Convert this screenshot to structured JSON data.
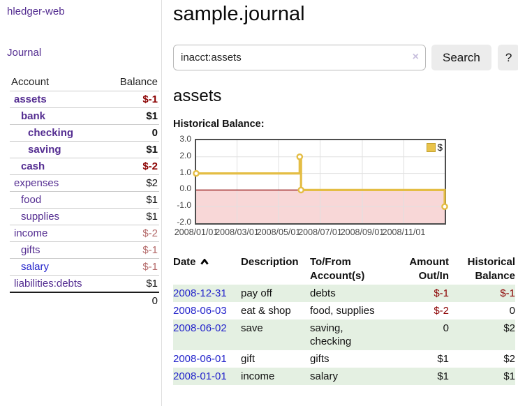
{
  "sidebar": {
    "brand": "hledger-web",
    "nav": [
      {
        "label": "Journal"
      }
    ],
    "accounts_table": {
      "col_account": "Account",
      "col_balance": "Balance",
      "rows": [
        {
          "name": "assets",
          "balance": "$-1",
          "indent": 0,
          "bold": true,
          "balance_style": "neg"
        },
        {
          "name": "bank",
          "balance": "$1",
          "indent": 1,
          "bold": true,
          "balance_style": ""
        },
        {
          "name": "checking",
          "balance": "0",
          "indent": 2,
          "bold": true,
          "balance_style": ""
        },
        {
          "name": "saving",
          "balance": "$1",
          "indent": 2,
          "bold": true,
          "balance_style": ""
        },
        {
          "name": "cash",
          "balance": "$-2",
          "indent": 1,
          "bold": true,
          "balance_style": "neg"
        },
        {
          "name": "expenses",
          "balance": "$2",
          "indent": 0,
          "bold": false,
          "balance_style": ""
        },
        {
          "name": "food",
          "balance": "$1",
          "indent": 1,
          "bold": false,
          "balance_style": ""
        },
        {
          "name": "supplies",
          "balance": "$1",
          "indent": 1,
          "bold": false,
          "balance_style": ""
        },
        {
          "name": "income",
          "balance": "$-2",
          "indent": 0,
          "bold": false,
          "balance_style": "soft-neg"
        },
        {
          "name": "gifts",
          "balance": "$-1",
          "indent": 1,
          "bold": false,
          "balance_style": "soft-neg"
        },
        {
          "name": "salary",
          "balance": "$-1",
          "indent": 1,
          "bold": false,
          "balance_style": "soft-neg",
          "link_color": "blue"
        },
        {
          "name": "liabilities:debts",
          "balance": "$1",
          "indent": 0,
          "bold": false,
          "balance_style": ""
        }
      ],
      "total": "0"
    }
  },
  "header": {
    "title": "sample.journal"
  },
  "search": {
    "value": "inacct:assets",
    "clear_icon": "×",
    "button_label": "Search",
    "help_label": "?"
  },
  "account_page": {
    "heading": "assets",
    "chart_title": "Historical Balance:"
  },
  "chart_data": {
    "type": "line",
    "step": true,
    "title": "Historical Balance:",
    "legend_position": "top-right",
    "legend_label": "$",
    "series": [
      {
        "name": "$",
        "color": "#e4bd44",
        "points": [
          [
            "2008-01-01",
            1
          ],
          [
            "2008-06-01",
            2
          ],
          [
            "2008-06-03",
            0
          ],
          [
            "2008-12-31",
            -1
          ]
        ]
      }
    ],
    "xlim": [
      "2008-01-01",
      "2008-12-31"
    ],
    "ylim": [
      -2,
      3
    ],
    "ytick_labels": [
      "3.0",
      "2.0",
      "1.0",
      "0.0",
      "-1.0",
      "-2.0"
    ],
    "yticks": [
      3,
      2,
      1,
      0,
      -1,
      -2
    ],
    "xticks": [
      "2008-01-01",
      "2008-03-01",
      "2008-05-01",
      "2008-07-01",
      "2008-09-01",
      "2008-11-01"
    ],
    "xtick_labels": [
      "2008/01/01",
      "2008/03/01",
      "2008/05/01",
      "2008/07/01",
      "2008/09/01",
      "2008/11/01"
    ],
    "grid": true,
    "grid_color": "#e0e0e0",
    "zero_line_color": "#8b0000",
    "negative_region_color": "#f8d7d7",
    "border_color": "#4d4d4d"
  },
  "register_table": {
    "columns": {
      "date": "Date",
      "description": "Description",
      "accounts": "To/From Account(s)",
      "amount": "Amount Out/In",
      "balance": "Historical Balance"
    },
    "sort": {
      "column": "date",
      "direction": "asc"
    },
    "rows": [
      {
        "date": "2008-12-31",
        "description": "pay off",
        "accounts": "debts",
        "amount": "$-1",
        "amount_neg": true,
        "balance": "$-1",
        "balance_neg": true
      },
      {
        "date": "2008-06-03",
        "description": "eat & shop",
        "accounts": "food, supplies",
        "amount": "$-2",
        "amount_neg": true,
        "balance": "0",
        "balance_neg": false
      },
      {
        "date": "2008-06-02",
        "description": "save",
        "accounts": "saving,\nchecking",
        "amount": "0",
        "amount_neg": false,
        "balance": "$2",
        "balance_neg": false
      },
      {
        "date": "2008-06-01",
        "description": "gift",
        "accounts": "gifts",
        "amount": "$1",
        "amount_neg": false,
        "balance": "$2",
        "balance_neg": false
      },
      {
        "date": "2008-01-01",
        "description": "income",
        "accounts": "salary",
        "amount": "$1",
        "amount_neg": false,
        "balance": "$1",
        "balance_neg": false
      }
    ]
  }
}
